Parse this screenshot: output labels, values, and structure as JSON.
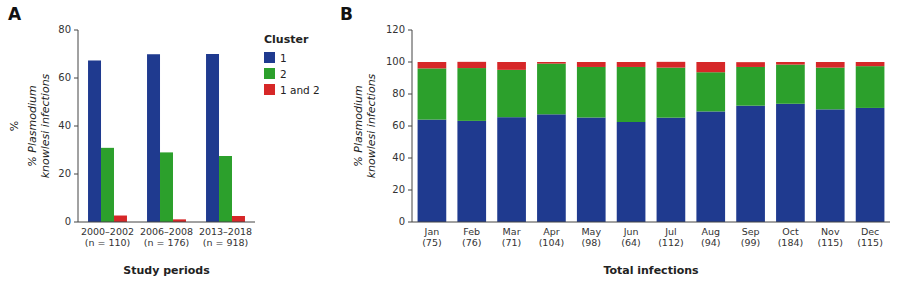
{
  "chart_data": [
    {
      "type": "bar",
      "title": "A",
      "annotations": [
        "%"
      ],
      "xlabel": "Study periods",
      "ylabel": "% Plasmodium\nknowlesi infections",
      "categories": [
        "2000–2002\n(n = 110)",
        "2006–2008\n(n = 176)",
        "2013–2018\n(n = 918)"
      ],
      "series": [
        {
          "name": "1",
          "color": "#1f3a8f",
          "values": [
            67.3,
            69.9,
            70.0
          ]
        },
        {
          "name": "2",
          "color": "#2ca02c",
          "values": [
            30.9,
            29.0,
            27.5
          ]
        },
        {
          "name": "1 and 2",
          "color": "#d62728",
          "values": [
            2.7,
            1.1,
            2.5
          ]
        }
      ],
      "ylim": [
        0,
        80
      ],
      "yticks": [
        0,
        20,
        40,
        60,
        80
      ],
      "legend": "upper right",
      "legend_title": "Cluster"
    },
    {
      "type": "bar",
      "title": "B",
      "xlabel": "Total infections",
      "ylabel": "% Plasmodium\nknowlesi infections",
      "categories": [
        "Jan\n(75)",
        "Feb\n(76)",
        "Mar\n(71)",
        "Apr\n(104)",
        "May\n(98)",
        "Jun\n(64)",
        "Jul\n(112)",
        "Aug\n(94)",
        "Sep\n(99)",
        "Oct\n(184)",
        "Nov\n(115)",
        "Dec\n(115)"
      ],
      "series": [
        {
          "color": "#1f3a8f",
          "values": [
            64.0,
            63.2,
            65.5,
            67.3,
            65.3,
            62.5,
            65.2,
            69.1,
            72.7,
            73.9,
            70.4,
            71.3
          ]
        },
        {
          "color": "#2ca02c",
          "values": [
            32.0,
            33.0,
            29.6,
            31.7,
            31.6,
            34.4,
            31.3,
            24.5,
            24.2,
            24.5,
            26.1,
            26.1
          ]
        },
        {
          "color": "#d62728",
          "values": [
            4.0,
            3.9,
            4.9,
            1.0,
            3.1,
            3.1,
            3.6,
            6.4,
            3.0,
            1.6,
            3.5,
            2.6
          ]
        }
      ],
      "stacked": true,
      "ylim": [
        0,
        120
      ],
      "yticks": [
        0,
        20,
        40,
        60,
        80,
        100,
        120
      ]
    }
  ]
}
